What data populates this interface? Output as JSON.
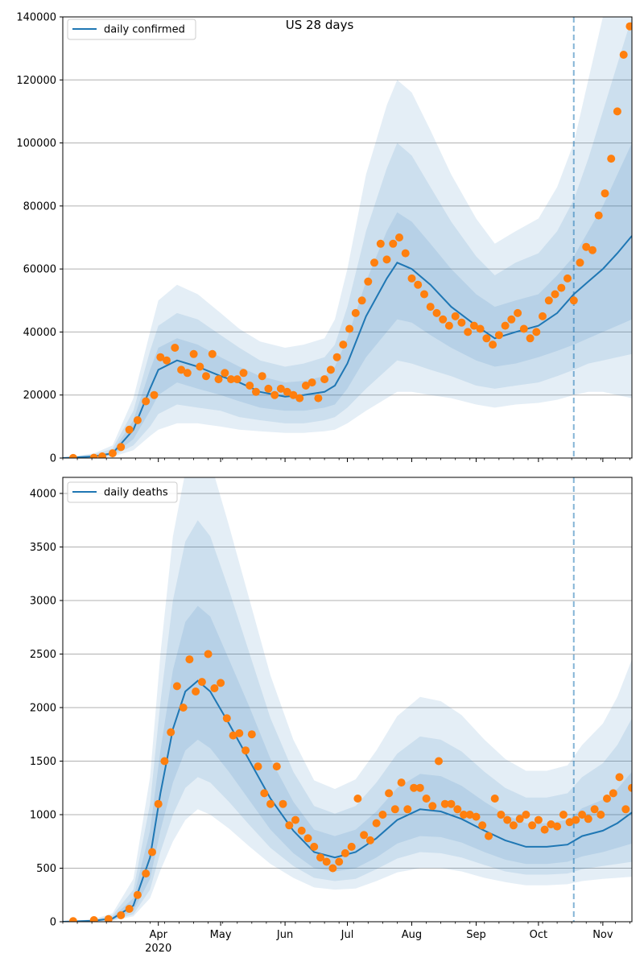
{
  "chart_data": [
    {
      "type": "line",
      "title": "US 28 days",
      "legend": {
        "position": "top-left",
        "entries": [
          "daily confirmed"
        ]
      },
      "grid": "horizontal",
      "x_type": "date",
      "x_range": [
        "2020-02-15",
        "2020-11-15"
      ],
      "x_tick_labels": [
        "Apr",
        "May",
        "Jun",
        "Jul",
        "Aug",
        "Sep",
        "Oct",
        "Nov"
      ],
      "x_tick_dates": [
        "2020-04-01",
        "2020-05-01",
        "2020-06-01",
        "2020-07-01",
        "2020-08-01",
        "2020-09-01",
        "2020-10-01",
        "2020-11-01"
      ],
      "x_year_label": "2020",
      "vline": "2020-10-18",
      "ylim": [
        0,
        140000
      ],
      "y_ticks": [
        0,
        20000,
        40000,
        60000,
        80000,
        100000,
        120000,
        140000
      ],
      "model": {
        "x": [
          "2020-02-15",
          "2020-03-01",
          "2020-03-10",
          "2020-03-20",
          "2020-03-28",
          "2020-04-01",
          "2020-04-10",
          "2020-04-20",
          "2020-05-01",
          "2020-05-10",
          "2020-05-20",
          "2020-06-01",
          "2020-06-10",
          "2020-06-20",
          "2020-06-25",
          "2020-07-01",
          "2020-07-10",
          "2020-07-20",
          "2020-07-25",
          "2020-08-01",
          "2020-08-10",
          "2020-08-20",
          "2020-09-01",
          "2020-09-10",
          "2020-09-20",
          "2020-10-01",
          "2020-10-10",
          "2020-10-18",
          "2020-10-25",
          "2020-11-01",
          "2020-11-08",
          "2020-11-15"
        ],
        "median": [
          0,
          500,
          1500,
          9000,
          22000,
          28000,
          31000,
          29000,
          26000,
          24000,
          21000,
          19500,
          20000,
          21000,
          23000,
          30000,
          45000,
          57000,
          62000,
          60000,
          55000,
          48000,
          42000,
          38000,
          40000,
          42000,
          46000,
          52000,
          56000,
          60000,
          65000,
          70500
        ],
        "band50": {
          "low": [
            0,
            300,
            1000,
            6000,
            15000,
            20000,
            24000,
            22000,
            20000,
            18000,
            16000,
            15000,
            15000,
            16000,
            17000,
            22000,
            32000,
            40000,
            44000,
            43000,
            39000,
            35000,
            31000,
            29000,
            30000,
            32000,
            34000,
            36000,
            38000,
            40000,
            42000,
            44000
          ],
          "high": [
            0,
            800,
            2000,
            12000,
            28000,
            35000,
            38000,
            36000,
            32000,
            29000,
            26000,
            24000,
            24500,
            26000,
            29000,
            38000,
            56000,
            72000,
            78000,
            75000,
            68000,
            60000,
            52000,
            48000,
            50000,
            52000,
            58000,
            64000,
            72000,
            80000,
            90000,
            100000
          ]
        },
        "band80": {
          "low": [
            0,
            200,
            700,
            4000,
            10000,
            14000,
            17000,
            16000,
            15000,
            13000,
            12000,
            11000,
            11000,
            12000,
            13000,
            16000,
            22000,
            28000,
            31000,
            30000,
            28000,
            26000,
            23000,
            22000,
            23000,
            24000,
            26000,
            28000,
            30000,
            31000,
            32000,
            33000
          ],
          "high": [
            0,
            1200,
            3000,
            15000,
            34000,
            42000,
            46000,
            44000,
            39000,
            35000,
            31000,
            29000,
            30000,
            32000,
            36000,
            48000,
            72000,
            92000,
            100000,
            96000,
            86000,
            75000,
            64000,
            58000,
            62000,
            65000,
            72000,
            82000,
            95000,
            110000,
            125000,
            140000
          ]
        },
        "band95": {
          "low": [
            0,
            100,
            400,
            2500,
            7000,
            9000,
            11000,
            11000,
            10000,
            9000,
            8500,
            8000,
            8000,
            8500,
            9000,
            11000,
            15000,
            19000,
            21000,
            21000,
            20000,
            19000,
            17000,
            16000,
            17000,
            17500,
            18500,
            20000,
            21000,
            21000,
            20000,
            19000
          ],
          "high": [
            0,
            1500,
            4000,
            19000,
            40000,
            50000,
            55000,
            52000,
            46000,
            41000,
            37000,
            35000,
            36000,
            38000,
            44000,
            60000,
            90000,
            112000,
            120000,
            116000,
            104000,
            90000,
            76000,
            68000,
            72000,
            76000,
            86000,
            100000,
            120000,
            140000,
            160000,
            180000
          ]
        }
      },
      "observed": {
        "x": [
          "2020-02-20",
          "2020-03-01",
          "2020-03-05",
          "2020-03-10",
          "2020-03-14",
          "2020-03-18",
          "2020-03-22",
          "2020-03-26",
          "2020-03-30",
          "2020-04-02",
          "2020-04-05",
          "2020-04-09",
          "2020-04-12",
          "2020-04-15",
          "2020-04-18",
          "2020-04-21",
          "2020-04-24",
          "2020-04-27",
          "2020-04-30",
          "2020-05-03",
          "2020-05-06",
          "2020-05-09",
          "2020-05-12",
          "2020-05-15",
          "2020-05-18",
          "2020-05-21",
          "2020-05-24",
          "2020-05-27",
          "2020-05-30",
          "2020-06-02",
          "2020-06-05",
          "2020-06-08",
          "2020-06-11",
          "2020-06-14",
          "2020-06-17",
          "2020-06-20",
          "2020-06-23",
          "2020-06-26",
          "2020-06-29",
          "2020-07-02",
          "2020-07-05",
          "2020-07-08",
          "2020-07-11",
          "2020-07-14",
          "2020-07-17",
          "2020-07-20",
          "2020-07-23",
          "2020-07-26",
          "2020-07-29",
          "2020-08-01",
          "2020-08-04",
          "2020-08-07",
          "2020-08-10",
          "2020-08-13",
          "2020-08-16",
          "2020-08-19",
          "2020-08-22",
          "2020-08-25",
          "2020-08-28",
          "2020-08-31",
          "2020-09-03",
          "2020-09-06",
          "2020-09-09",
          "2020-09-12",
          "2020-09-15",
          "2020-09-18",
          "2020-09-21",
          "2020-09-24",
          "2020-09-27",
          "2020-09-30",
          "2020-10-03",
          "2020-10-06",
          "2020-10-09",
          "2020-10-12",
          "2020-10-15",
          "2020-10-18",
          "2020-10-21",
          "2020-10-24",
          "2020-10-27",
          "2020-10-30",
          "2020-11-02",
          "2020-11-05",
          "2020-11-08",
          "2020-11-11",
          "2020-11-14"
        ],
        "y": [
          20,
          100,
          500,
          1500,
          3500,
          9000,
          12000,
          18000,
          20000,
          32000,
          31000,
          35000,
          28000,
          27000,
          33000,
          29000,
          26000,
          33000,
          25000,
          27000,
          25000,
          25000,
          27000,
          23000,
          21000,
          26000,
          22000,
          20000,
          22000,
          21000,
          20000,
          19000,
          23000,
          24000,
          19000,
          25000,
          28000,
          32000,
          36000,
          41000,
          46000,
          50000,
          56000,
          62000,
          68000,
          63000,
          68000,
          70000,
          65000,
          57000,
          55000,
          52000,
          48000,
          46000,
          44000,
          42000,
          45000,
          43000,
          40000,
          42000,
          41000,
          38000,
          36000,
          39000,
          42000,
          44000,
          46000,
          41000,
          38000,
          40000,
          45000,
          50000,
          52000,
          54000,
          57000,
          50000,
          62000,
          67000,
          66000,
          77000,
          84000,
          95000,
          110000,
          128000,
          137000
        ]
      }
    },
    {
      "type": "line",
      "title": "",
      "legend": {
        "position": "top-left",
        "entries": [
          "daily deaths"
        ]
      },
      "grid": "horizontal",
      "x_type": "date",
      "x_range": [
        "2020-02-15",
        "2020-11-15"
      ],
      "x_tick_labels": [
        "Apr",
        "May",
        "Jun",
        "Jul",
        "Aug",
        "Sep",
        "Oct",
        "Nov"
      ],
      "x_tick_dates": [
        "2020-04-01",
        "2020-05-01",
        "2020-06-01",
        "2020-07-01",
        "2020-08-01",
        "2020-09-01",
        "2020-10-01",
        "2020-11-01"
      ],
      "x_year_label": "2020",
      "vline": "2020-10-18",
      "ylim": [
        0,
        4150
      ],
      "y_ticks": [
        0,
        500,
        1000,
        1500,
        2000,
        2500,
        3000,
        3500,
        4000
      ],
      "model": {
        "x": [
          "2020-02-15",
          "2020-03-01",
          "2020-03-10",
          "2020-03-20",
          "2020-03-28",
          "2020-04-02",
          "2020-04-08",
          "2020-04-14",
          "2020-04-20",
          "2020-04-26",
          "2020-05-05",
          "2020-05-15",
          "2020-05-25",
          "2020-06-05",
          "2020-06-15",
          "2020-06-25",
          "2020-07-05",
          "2020-07-15",
          "2020-07-25",
          "2020-08-05",
          "2020-08-15",
          "2020-08-25",
          "2020-09-05",
          "2020-09-15",
          "2020-09-25",
          "2020-10-05",
          "2020-10-15",
          "2020-10-22",
          "2020-11-01",
          "2020-11-08",
          "2020-11-15"
        ],
        "median": [
          0,
          10,
          30,
          150,
          600,
          1200,
          1800,
          2150,
          2250,
          2150,
          1850,
          1500,
          1150,
          850,
          650,
          600,
          650,
          780,
          950,
          1050,
          1030,
          960,
          850,
          760,
          700,
          700,
          720,
          800,
          850,
          920,
          1020
        ],
        "band50": {
          "low": [
            0,
            5,
            20,
            100,
            400,
            850,
            1300,
            1600,
            1700,
            1620,
            1400,
            1130,
            860,
            640,
            500,
            470,
            500,
            600,
            730,
            800,
            790,
            740,
            650,
            580,
            540,
            540,
            560,
            610,
            650,
            690,
            730
          ],
          "high": [
            0,
            15,
            45,
            220,
            850,
            1600,
            2350,
            2800,
            2950,
            2850,
            2450,
            2000,
            1520,
            1120,
            860,
            800,
            860,
            1030,
            1250,
            1380,
            1360,
            1270,
            1120,
            1000,
            920,
            920,
            950,
            1060,
            1140,
            1240,
            1400
          ]
        },
        "band80": {
          "low": [
            0,
            3,
            15,
            70,
            300,
            650,
            1000,
            1250,
            1350,
            1300,
            1120,
            900,
            690,
            520,
            410,
            380,
            400,
            490,
            590,
            650,
            640,
            600,
            530,
            470,
            440,
            440,
            450,
            490,
            520,
            540,
            560
          ],
          "high": [
            0,
            20,
            60,
            300,
            1100,
            2050,
            3000,
            3550,
            3750,
            3600,
            3100,
            2500,
            1900,
            1400,
            1080,
            1010,
            1080,
            1300,
            1570,
            1730,
            1700,
            1590,
            1400,
            1250,
            1160,
            1160,
            1200,
            1350,
            1480,
            1650,
            1900
          ]
        },
        "band95": {
          "low": [
            0,
            2,
            10,
            50,
            220,
            480,
            750,
            950,
            1050,
            1000,
            870,
            700,
            540,
            410,
            320,
            300,
            310,
            380,
            460,
            500,
            500,
            470,
            410,
            370,
            340,
            340,
            350,
            380,
            400,
            410,
            420
          ],
          "high": [
            0,
            25,
            80,
            400,
            1350,
            2500,
            3600,
            4200,
            4450,
            4300,
            3700,
            3000,
            2300,
            1700,
            1320,
            1240,
            1330,
            1600,
            1920,
            2100,
            2060,
            1930,
            1700,
            1520,
            1410,
            1410,
            1460,
            1650,
            1850,
            2100,
            2450
          ]
        }
      },
      "observed": {
        "x": [
          "2020-02-20",
          "2020-03-01",
          "2020-03-08",
          "2020-03-14",
          "2020-03-18",
          "2020-03-22",
          "2020-03-26",
          "2020-03-29",
          "2020-04-01",
          "2020-04-04",
          "2020-04-07",
          "2020-04-10",
          "2020-04-13",
          "2020-04-16",
          "2020-04-19",
          "2020-04-22",
          "2020-04-25",
          "2020-04-28",
          "2020-05-01",
          "2020-05-04",
          "2020-05-07",
          "2020-05-10",
          "2020-05-13",
          "2020-05-16",
          "2020-05-19",
          "2020-05-22",
          "2020-05-25",
          "2020-05-28",
          "2020-05-31",
          "2020-06-03",
          "2020-06-06",
          "2020-06-09",
          "2020-06-12",
          "2020-06-15",
          "2020-06-18",
          "2020-06-21",
          "2020-06-24",
          "2020-06-27",
          "2020-06-30",
          "2020-07-03",
          "2020-07-06",
          "2020-07-09",
          "2020-07-12",
          "2020-07-15",
          "2020-07-18",
          "2020-07-21",
          "2020-07-24",
          "2020-07-27",
          "2020-07-30",
          "2020-08-02",
          "2020-08-05",
          "2020-08-08",
          "2020-08-11",
          "2020-08-14",
          "2020-08-17",
          "2020-08-20",
          "2020-08-23",
          "2020-08-26",
          "2020-08-29",
          "2020-09-01",
          "2020-09-04",
          "2020-09-07",
          "2020-09-10",
          "2020-09-13",
          "2020-09-16",
          "2020-09-19",
          "2020-09-22",
          "2020-09-25",
          "2020-09-28",
          "2020-10-01",
          "2020-10-04",
          "2020-10-07",
          "2020-10-10",
          "2020-10-13",
          "2020-10-16",
          "2020-10-19",
          "2020-10-22",
          "2020-10-25",
          "2020-10-28",
          "2020-10-31",
          "2020-11-03",
          "2020-11-06",
          "2020-11-09",
          "2020-11-12",
          "2020-11-15"
        ],
        "y": [
          5,
          15,
          25,
          60,
          120,
          250,
          450,
          650,
          1100,
          1500,
          1770,
          2200,
          2000,
          2450,
          2150,
          2240,
          2500,
          2180,
          2230,
          1900,
          1740,
          1760,
          1600,
          1750,
          1450,
          1200,
          1100,
          1450,
          1100,
          900,
          950,
          850,
          780,
          700,
          600,
          560,
          500,
          560,
          640,
          700,
          1150,
          810,
          760,
          920,
          1000,
          1200,
          1050,
          1300,
          1050,
          1250,
          1250,
          1150,
          1080,
          1500,
          1100,
          1100,
          1050,
          1000,
          1000,
          980,
          900,
          800,
          1150,
          1000,
          950,
          900,
          960,
          1000,
          900,
          950,
          860,
          910,
          890,
          1000,
          930,
          950,
          1000,
          960,
          1050,
          1000,
          1150,
          1200,
          1350,
          1050,
          1250
        ]
      }
    }
  ]
}
